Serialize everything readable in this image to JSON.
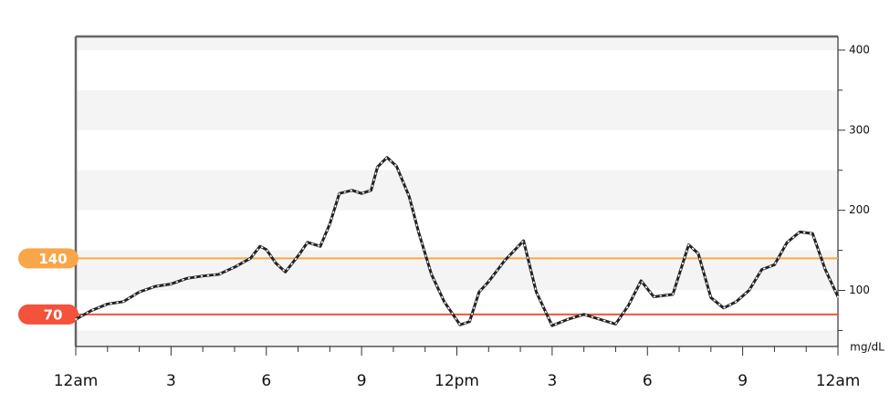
{
  "chart_data": {
    "type": "line",
    "x": [
      0,
      0.5,
      1,
      1.5,
      2,
      2.5,
      3,
      3.5,
      4,
      4.5,
      5,
      5.5,
      5.8,
      6,
      6.3,
      6.6,
      7,
      7.3,
      7.7,
      8,
      8.3,
      8.7,
      9,
      9.3,
      9.5,
      9.8,
      10.1,
      10.5,
      10.8,
      11.2,
      11.6,
      12.1,
      12.4,
      12.7,
      13,
      13.5,
      14.1,
      14.5,
      15,
      15.5,
      16,
      16.5,
      17,
      17.4,
      17.8,
      18.2,
      18.8,
      19.3,
      19.6,
      20,
      20.4,
      20.8,
      21.2,
      21.6,
      22,
      22.4,
      22.8,
      23.2,
      23.6,
      24
    ],
    "series": [
      {
        "color": "#222222",
        "values": [
          64,
          75,
          83,
          86,
          98,
          105,
          108,
          115,
          118,
          120,
          129,
          140,
          155,
          151,
          134,
          123,
          143,
          160,
          155,
          183,
          221,
          225,
          221,
          225,
          254,
          266,
          255,
          217,
          172,
          120,
          86,
          57,
          61,
          98,
          111,
          137,
          162,
          98,
          56,
          64,
          70,
          64,
          58,
          81,
          112,
          92,
          95,
          157,
          146,
          91,
          78,
          86,
          100,
          126,
          132,
          160,
          173,
          171,
          126,
          92
        ]
      }
    ],
    "xlim": [
      0,
      24
    ],
    "xticks": [
      {
        "value": 0,
        "label": "12am"
      },
      3,
      6,
      9,
      {
        "value": 12,
        "label": "12pm"
      },
      3,
      6,
      9,
      {
        "value": 24,
        "label": "12am"
      }
    ],
    "ylim": [
      30,
      417
    ],
    "yticks": [
      100,
      200,
      300,
      400
    ],
    "y_axis_label": "mg/dL",
    "thresholds": [
      {
        "value": 140,
        "color": "#f9a64a"
      },
      {
        "value": 70,
        "color": "#f4523a"
      }
    ]
  }
}
